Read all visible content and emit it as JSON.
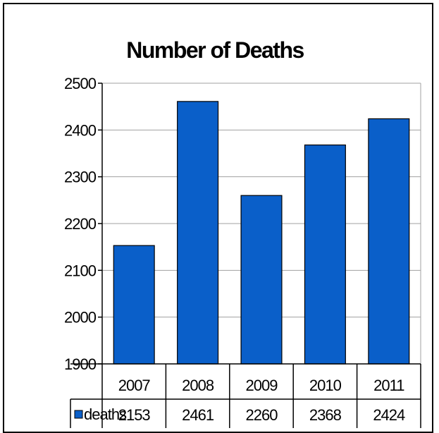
{
  "chart_data": {
    "type": "bar",
    "title": "Number of Deaths",
    "categories": [
      "2007",
      "2008",
      "2009",
      "2010",
      "2011"
    ],
    "series": [
      {
        "name": "deaths",
        "values": [
          2153,
          2461,
          2260,
          2368,
          2424
        ],
        "color": "#0a5fc9"
      }
    ],
    "ylim": [
      1900,
      2500
    ],
    "yticks": [
      1900,
      2000,
      2100,
      2200,
      2300,
      2400,
      2500
    ],
    "grid": true,
    "legend": "data-table"
  }
}
